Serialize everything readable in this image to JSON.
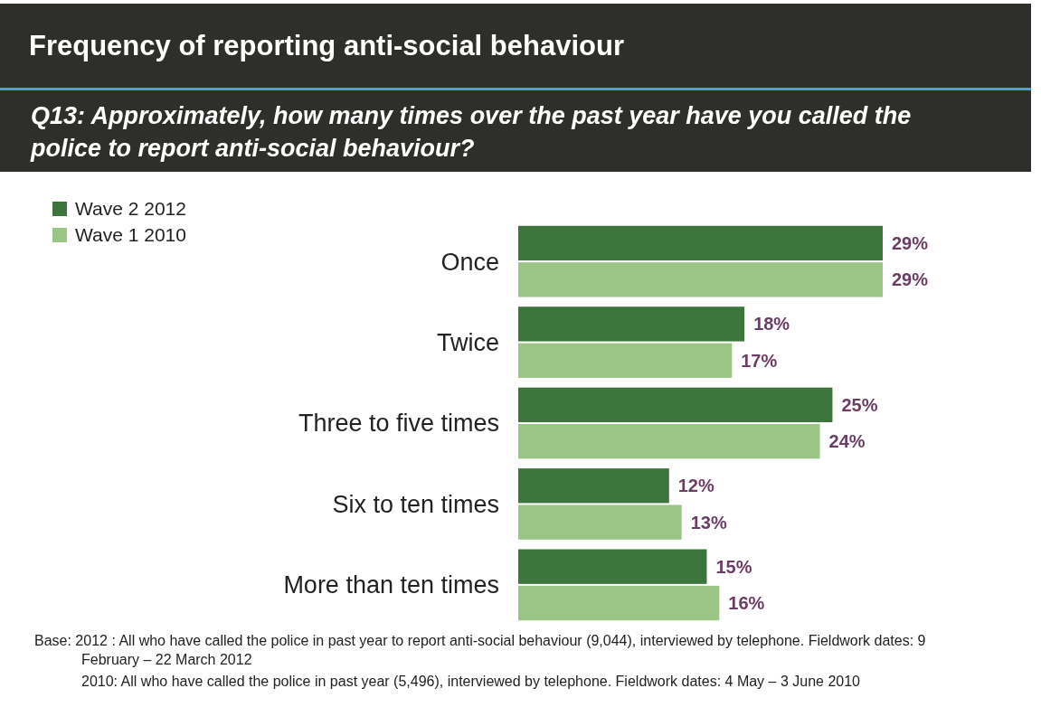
{
  "chart_data": {
    "type": "bar",
    "orientation": "horizontal",
    "title": "Frequency of reporting anti-social behaviour",
    "subtitle": "Q13: Approximately, how many times over the past year have you called the police to report anti-social behaviour?",
    "categories": [
      "Once",
      "Twice",
      "Three to five times",
      "Six to ten times",
      "More than ten times"
    ],
    "series": [
      {
        "name": "Wave 2 2012",
        "color": "#3c763c",
        "values": [
          29,
          18,
          25,
          12,
          15
        ],
        "value_labels": [
          "29%",
          "18%",
          "25%",
          "12%",
          "15%"
        ]
      },
      {
        "name": "Wave 1 2010",
        "color": "#9bc585",
        "values": [
          29,
          17,
          24,
          13,
          16
        ],
        "value_labels": [
          "29%",
          "17%",
          "24%",
          "13%",
          "16%"
        ]
      }
    ],
    "legend": "top left",
    "annotations": [
      "Base: 2012 : All who have called the police in past year  to report anti-social behaviour (9,044), interviewed by telephone. Fieldwork dates: 9 February – 22 March 2012",
      "2010:  All who have called the police in past year (5,496), interviewed by telephone. Fieldwork dates: 4 May – 3 June 2010"
    ]
  }
}
